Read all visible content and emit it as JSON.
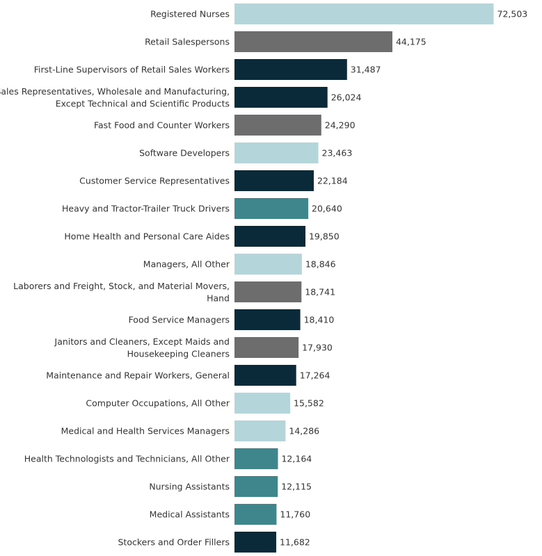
{
  "chart_data": {
    "type": "bar",
    "orientation": "horizontal",
    "title": "",
    "xlabel": "",
    "ylabel": "",
    "grid": false,
    "xlim": [
      0,
      75000
    ],
    "palette": {
      "light_blue": "#b4d6db",
      "gray": "#6d6d6d",
      "navy": "#0a2a3a",
      "teal": "#3f858c"
    },
    "categories": [
      "Registered Nurses",
      "Retail Salespersons",
      "First-Line Supervisors of Retail Sales Workers",
      "Sales Representatives, Wholesale and Manufacturing, Except Technical and Scientific Products",
      "Fast Food and Counter Workers",
      "Software Developers",
      "Customer Service Representatives",
      "Heavy and Tractor-Trailer Truck Drivers",
      "Home Health and Personal Care Aides",
      "Managers, All Other",
      "Laborers and Freight, Stock, and Material Movers, Hand",
      "Food Service Managers",
      "Janitors and Cleaners, Except Maids and Housekeeping Cleaners",
      "Maintenance and Repair Workers, General",
      "Computer Occupations, All Other",
      "Medical and Health Services Managers",
      "Health Technologists and Technicians, All Other",
      "Nursing Assistants",
      "Medical Assistants",
      "Stockers and Order Fillers"
    ],
    "label_lines": [
      [
        "Registered Nurses"
      ],
      [
        "Retail Salespersons"
      ],
      [
        "First-Line Supervisors of Retail Sales Workers"
      ],
      [
        "Sales Representatives, Wholesale and Manufacturing,",
        "Except Technical and Scientific Products"
      ],
      [
        "Fast Food and Counter Workers"
      ],
      [
        "Software Developers"
      ],
      [
        "Customer Service Representatives"
      ],
      [
        "Heavy and Tractor-Trailer Truck Drivers"
      ],
      [
        "Home Health and Personal Care Aides"
      ],
      [
        "Managers, All Other"
      ],
      [
        "Laborers and Freight, Stock, and Material Movers,",
        "Hand"
      ],
      [
        "Food Service Managers"
      ],
      [
        "Janitors and Cleaners, Except Maids and",
        "Housekeeping Cleaners"
      ],
      [
        "Maintenance and Repair Workers, General"
      ],
      [
        "Computer Occupations, All Other"
      ],
      [
        "Medical and Health Services Managers"
      ],
      [
        "Health Technologists and Technicians, All Other"
      ],
      [
        "Nursing Assistants"
      ],
      [
        "Medical Assistants"
      ],
      [
        "Stockers and Order Fillers"
      ]
    ],
    "values": [
      72503,
      44175,
      31487,
      26024,
      24290,
      23463,
      22184,
      20640,
      19850,
      18846,
      18741,
      18410,
      17930,
      17264,
      15582,
      14286,
      12164,
      12115,
      11760,
      11682
    ],
    "value_labels": [
      "72,503",
      "44,175",
      "31,487",
      "26,024",
      "24,290",
      "23,463",
      "22,184",
      "20,640",
      "19,850",
      "18,846",
      "18,741",
      "18,410",
      "17,930",
      "17,264",
      "15,582",
      "14,286",
      "12,164",
      "12,115",
      "11,760",
      "11,682"
    ],
    "bar_colors": [
      "#b4d6db",
      "#6d6d6d",
      "#0a2a3a",
      "#0a2a3a",
      "#6d6d6d",
      "#b4d6db",
      "#0a2a3a",
      "#3f858c",
      "#0a2a3a",
      "#b4d6db",
      "#6d6d6d",
      "#0a2a3a",
      "#6d6d6d",
      "#0a2a3a",
      "#b4d6db",
      "#b4d6db",
      "#3f858c",
      "#3f858c",
      "#3f858c",
      "#0a2a3a"
    ]
  }
}
